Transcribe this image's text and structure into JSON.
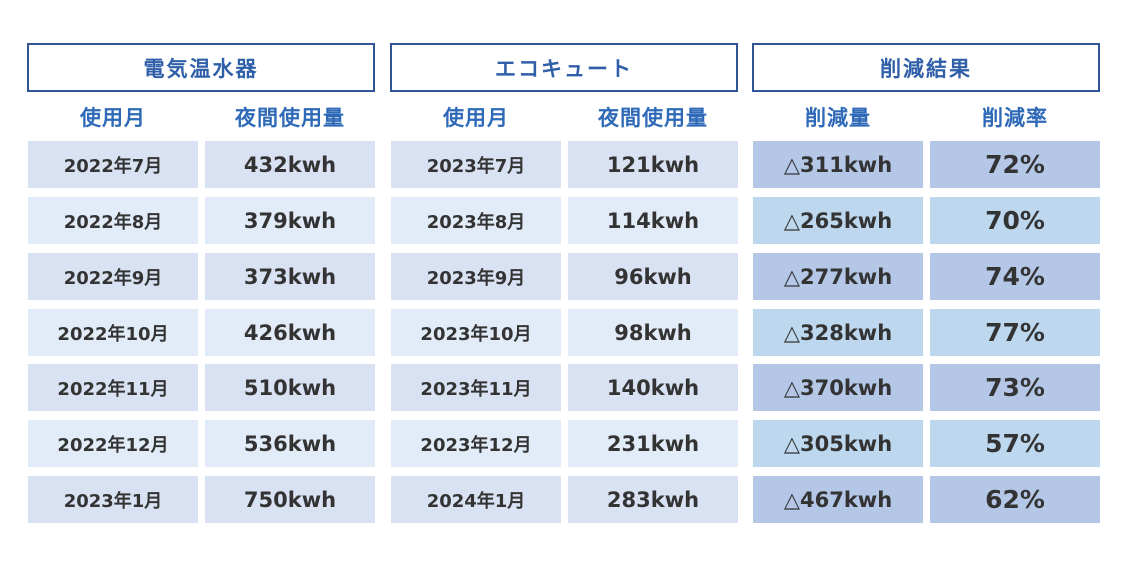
{
  "groups": [
    {
      "title": "電気温水器",
      "columns": [
        "使用月",
        "夜間使用量"
      ],
      "rows": [
        [
          "2022年7月",
          "432kwh"
        ],
        [
          "2022年8月",
          "379kwh"
        ],
        [
          "2022年9月",
          "373kwh"
        ],
        [
          "2022年10月",
          "426kwh"
        ],
        [
          "2022年11月",
          "510kwh"
        ],
        [
          "2022年12月",
          "536kwh"
        ],
        [
          "2023年1月",
          "750kwh"
        ]
      ]
    },
    {
      "title": "エコキュート",
      "columns": [
        "使用月",
        "夜間使用量"
      ],
      "rows": [
        [
          "2023年7月",
          "121kwh"
        ],
        [
          "2023年8月",
          "114kwh"
        ],
        [
          "2023年9月",
          "96kwh"
        ],
        [
          "2023年10月",
          "98kwh"
        ],
        [
          "2023年11月",
          "140kwh"
        ],
        [
          "2023年12月",
          "231kwh"
        ],
        [
          "2024年1月",
          "283kwh"
        ]
      ]
    },
    {
      "title": "削減結果",
      "columns": [
        "削減量",
        "削減率"
      ],
      "rows": [
        [
          "△311kwh",
          "72%"
        ],
        [
          "△265kwh",
          "70%"
        ],
        [
          "△277kwh",
          "74%"
        ],
        [
          "△328kwh",
          "77%"
        ],
        [
          "△370kwh",
          "73%"
        ],
        [
          "△305kwh",
          "57%"
        ],
        [
          "△467kwh",
          "62%"
        ]
      ]
    }
  ]
}
